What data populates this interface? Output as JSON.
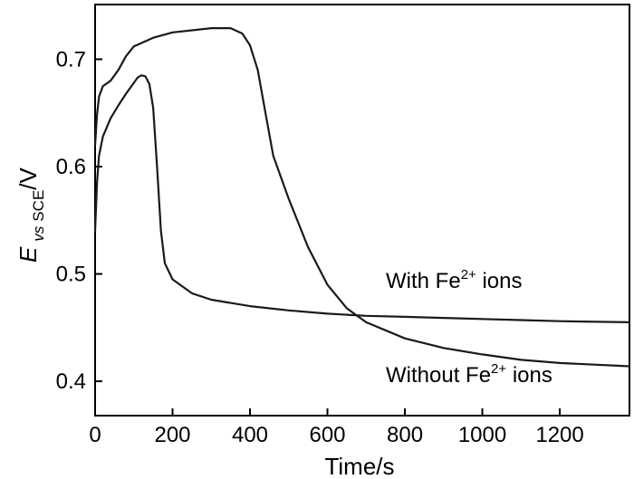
{
  "chart_data": {
    "type": "line",
    "xlabel": "Time/s",
    "ylabel": {
      "symbol": "E",
      "subscript_vs": "vs",
      "subscript_ref": "SCE",
      "unit": "/V"
    },
    "xlim": [
      0,
      1380
    ],
    "ylim": [
      0.368,
      0.751
    ],
    "x_ticks": [
      0,
      200,
      400,
      600,
      800,
      1000,
      1200
    ],
    "x_tick_labels": [
      "0",
      "200",
      "400",
      "600",
      "800",
      "1000",
      "1200"
    ],
    "y_ticks": [
      0.4,
      0.5,
      0.6,
      0.7
    ],
    "y_tick_labels": [
      "0.4",
      "0.5",
      "0.6",
      "0.7"
    ],
    "series": [
      {
        "label": {
          "prefix": "With Fe",
          "sup": "2+",
          "suffix": " ions"
        },
        "color": "#1a1a1a",
        "points": [
          [
            0,
            0.54
          ],
          [
            5,
            0.585
          ],
          [
            10,
            0.61
          ],
          [
            20,
            0.628
          ],
          [
            40,
            0.645
          ],
          [
            60,
            0.657
          ],
          [
            80,
            0.668
          ],
          [
            100,
            0.678
          ],
          [
            110,
            0.683
          ],
          [
            120,
            0.685
          ],
          [
            130,
            0.684
          ],
          [
            140,
            0.677
          ],
          [
            150,
            0.655
          ],
          [
            160,
            0.6
          ],
          [
            170,
            0.54
          ],
          [
            180,
            0.51
          ],
          [
            200,
            0.495
          ],
          [
            250,
            0.482
          ],
          [
            300,
            0.476
          ],
          [
            400,
            0.47
          ],
          [
            500,
            0.466
          ],
          [
            600,
            0.463
          ],
          [
            700,
            0.461
          ],
          [
            800,
            0.46
          ],
          [
            900,
            0.459
          ],
          [
            1000,
            0.458
          ],
          [
            1100,
            0.457
          ],
          [
            1200,
            0.456
          ],
          [
            1380,
            0.455
          ]
        ]
      },
      {
        "label": {
          "prefix": "Without Fe",
          "sup": "2+",
          "suffix": " ions"
        },
        "color": "#1a1a1a",
        "points": [
          [
            0,
            0.62
          ],
          [
            5,
            0.648
          ],
          [
            10,
            0.665
          ],
          [
            20,
            0.675
          ],
          [
            40,
            0.68
          ],
          [
            60,
            0.69
          ],
          [
            80,
            0.703
          ],
          [
            100,
            0.712
          ],
          [
            150,
            0.72
          ],
          [
            200,
            0.725
          ],
          [
            300,
            0.729
          ],
          [
            350,
            0.729
          ],
          [
            380,
            0.724
          ],
          [
            400,
            0.713
          ],
          [
            420,
            0.69
          ],
          [
            440,
            0.65
          ],
          [
            460,
            0.61
          ],
          [
            500,
            0.57
          ],
          [
            550,
            0.525
          ],
          [
            600,
            0.49
          ],
          [
            650,
            0.468
          ],
          [
            700,
            0.455
          ],
          [
            800,
            0.44
          ],
          [
            900,
            0.431
          ],
          [
            1000,
            0.425
          ],
          [
            1100,
            0.42
          ],
          [
            1200,
            0.417
          ],
          [
            1380,
            0.414
          ]
        ]
      }
    ],
    "grid": false,
    "legend": "inline labels on curves"
  }
}
